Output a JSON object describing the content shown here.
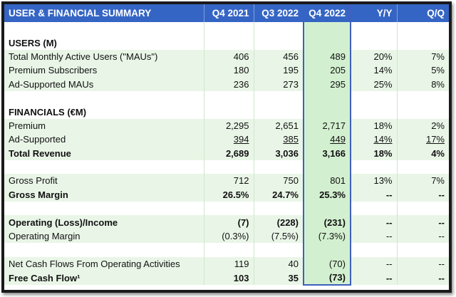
{
  "header": {
    "title": "USER & FINANCIAL SUMMARY",
    "columns": [
      "Q4 2021",
      "Q3 2022",
      "Q4 2022",
      "Y/Y",
      "Q/Q"
    ]
  },
  "rows": [
    {
      "label": "",
      "cells": [
        "",
        "",
        "",
        "",
        ""
      ]
    },
    {
      "label": "USERS (M)",
      "cells": [
        "",
        "",
        "",
        "",
        ""
      ]
    },
    {
      "label": "Total Monthly Active Users (\"MAUs\")",
      "cells": [
        "406",
        "456",
        "489",
        "20%",
        "7%"
      ]
    },
    {
      "label": "Premium Subscribers",
      "cells": [
        "180",
        "195",
        "205",
        "14%",
        "5%"
      ]
    },
    {
      "label": "Ad-Supported MAUs",
      "cells": [
        "236",
        "273",
        "295",
        "25%",
        "8%"
      ]
    },
    {
      "label": "",
      "cells": [
        "",
        "",
        "",
        "",
        ""
      ]
    },
    {
      "label": "FINANCIALS (€M)",
      "cells": [
        "",
        "",
        "",
        "",
        ""
      ]
    },
    {
      "label": "Premium",
      "cells": [
        "2,295",
        "2,651",
        "2,717",
        "18%",
        "2%"
      ]
    },
    {
      "label": "Ad-Supported",
      "cells": [
        "394",
        "385",
        "449",
        "14%",
        "17%"
      ]
    },
    {
      "label": "Total Revenue",
      "cells": [
        "2,689",
        "3,036",
        "3,166",
        "18%",
        "4%"
      ]
    },
    {
      "label": "",
      "cells": [
        "",
        "",
        "",
        "",
        ""
      ]
    },
    {
      "label": "Gross Profit",
      "cells": [
        "712",
        "750",
        "801",
        "13%",
        "7%"
      ]
    },
    {
      "label": "Gross Margin",
      "cells": [
        "26.5%",
        "24.7%",
        "25.3%",
        "--",
        "--"
      ]
    },
    {
      "label": "",
      "cells": [
        "",
        "",
        "",
        "",
        ""
      ]
    },
    {
      "label": "Operating (Loss)/Income",
      "cells": [
        "(7)",
        "(228)",
        "(231)",
        "--",
        "--"
      ]
    },
    {
      "label": "Operating Margin",
      "cells": [
        "(0.3%)",
        "(7.5%)",
        "(7.3%)",
        "--",
        "--"
      ]
    },
    {
      "label": "",
      "cells": [
        "",
        "",
        "",
        "",
        ""
      ]
    },
    {
      "label": "Net Cash Flows From Operating Activities",
      "cells": [
        "119",
        "40",
        "(70)",
        "--",
        "--"
      ]
    },
    {
      "label": "Free Cash Flow¹",
      "cells": [
        "103",
        "35",
        "(73)",
        "--",
        "--"
      ]
    }
  ],
  "colors": {
    "header_bg": "#3565c4",
    "row_green": "#e9f6e7",
    "highlight_col": "#d2f0cf",
    "highlight_border": "#3f5fbf"
  }
}
